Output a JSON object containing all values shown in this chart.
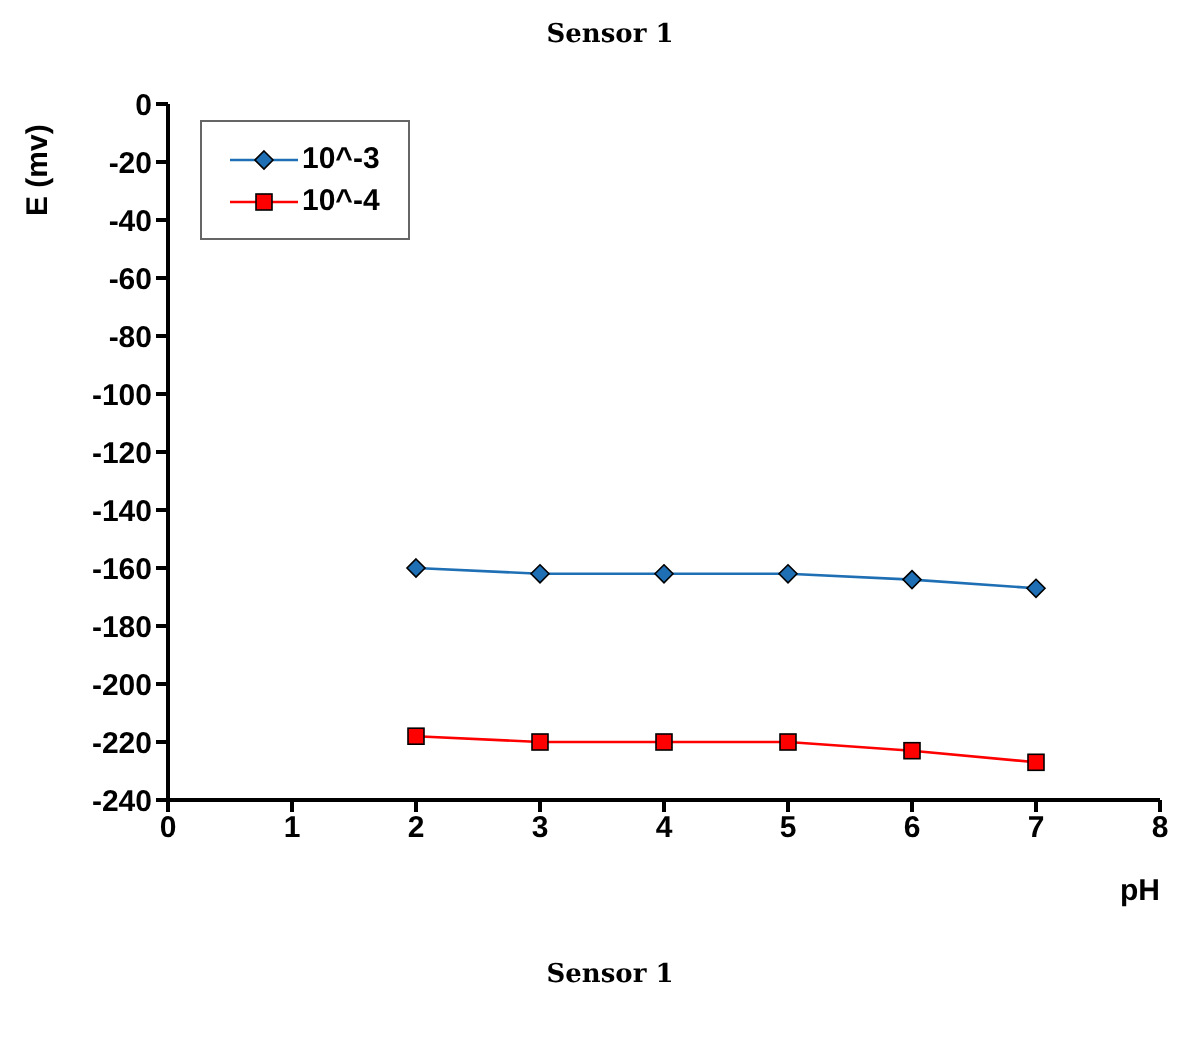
{
  "chart_data": {
    "type": "line",
    "title": "Sensor 1",
    "xlabel": "pH",
    "ylabel": "E (mv)",
    "annotations": [
      "Sensor 1"
    ],
    "x": [
      2,
      3,
      4,
      5,
      6,
      7
    ],
    "series": [
      {
        "name": "10^-3",
        "color": "#1f6fb4",
        "values": [
          -160,
          -162,
          -162,
          -162,
          -164,
          -167
        ],
        "marker": "diamond"
      },
      {
        "name": "10^-4",
        "color": "#ff0000",
        "values": [
          -218,
          -220,
          -220,
          -220,
          -223,
          -227
        ],
        "marker": "square"
      }
    ],
    "xlim": [
      0,
      8
    ],
    "xticks": [
      0,
      1,
      2,
      3,
      4,
      5,
      6,
      7,
      8
    ],
    "ylim": [
      -240,
      0
    ],
    "yticks": [
      0,
      -20,
      -40,
      -60,
      -80,
      -100,
      -120,
      -140,
      -160,
      -180,
      -200,
      -220,
      -240
    ],
    "grid": false,
    "legend": "top left",
    "line_style": "solid"
  }
}
